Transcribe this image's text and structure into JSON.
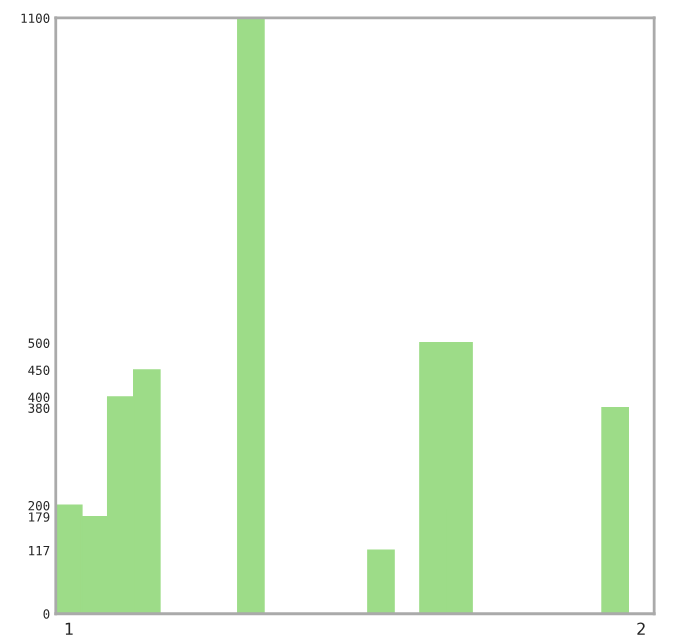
{
  "chart_data": {
    "type": "bar",
    "categories": [
      "1",
      null,
      null,
      null,
      null,
      null,
      null,
      null,
      null,
      null,
      null,
      null,
      null,
      null,
      null,
      null,
      null,
      null,
      null,
      null,
      null,
      null,
      "2"
    ],
    "values": [
      200,
      179,
      400,
      450,
      0,
      0,
      0,
      1100,
      0,
      0,
      0,
      0,
      117,
      0,
      500,
      500,
      0,
      0,
      0,
      0,
      0,
      380,
      0
    ],
    "color": "#9ddc88",
    "ylim": [
      0,
      1100
    ],
    "yticks": [
      0,
      117,
      179,
      200,
      380,
      400,
      450,
      500,
      1100
    ],
    "grid": false
  }
}
